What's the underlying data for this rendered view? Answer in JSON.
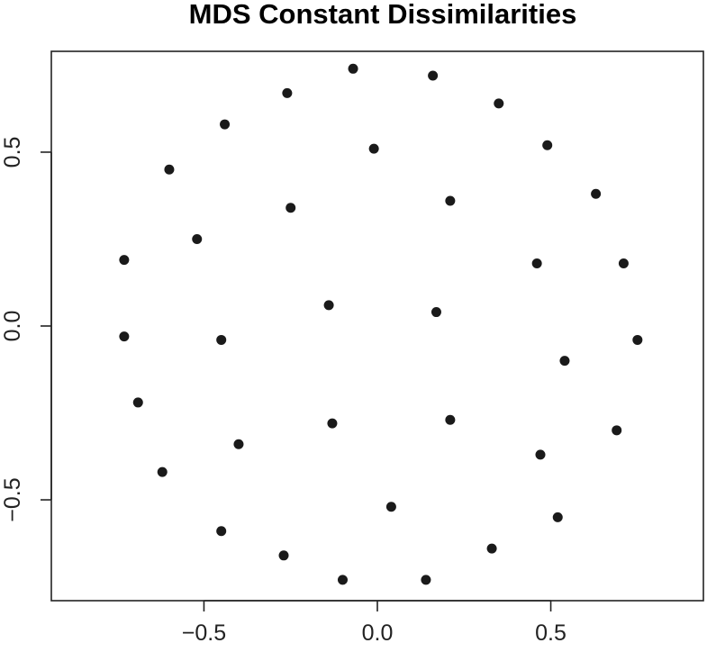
{
  "chart_data": {
    "type": "scatter",
    "title": "MDS Constant Dissimilarities",
    "xlabel": "",
    "ylabel": "",
    "xlim": [
      -0.94,
      0.94
    ],
    "ylim": [
      -0.79,
      0.79
    ],
    "x_ticks": [
      -0.5,
      0.0,
      0.5
    ],
    "x_tick_labels": [
      "−0.5",
      "0.0",
      "0.5"
    ],
    "y_ticks": [
      -0.5,
      0.0,
      0.5
    ],
    "y_tick_labels": [
      "−0.5",
      "0.0",
      "0.5"
    ],
    "grid": false,
    "legend": "none",
    "point_color": "#1a1a1a",
    "points": [
      {
        "x": -0.07,
        "y": 0.74
      },
      {
        "x": 0.16,
        "y": 0.72
      },
      {
        "x": -0.26,
        "y": 0.67
      },
      {
        "x": 0.35,
        "y": 0.64
      },
      {
        "x": -0.44,
        "y": 0.58
      },
      {
        "x": -0.01,
        "y": 0.51
      },
      {
        "x": 0.49,
        "y": 0.52
      },
      {
        "x": -0.6,
        "y": 0.45
      },
      {
        "x": 0.63,
        "y": 0.38
      },
      {
        "x": 0.21,
        "y": 0.36
      },
      {
        "x": -0.25,
        "y": 0.34
      },
      {
        "x": -0.52,
        "y": 0.25
      },
      {
        "x": -0.73,
        "y": 0.19
      },
      {
        "x": 0.46,
        "y": 0.18
      },
      {
        "x": 0.71,
        "y": 0.18
      },
      {
        "x": -0.14,
        "y": 0.06
      },
      {
        "x": 0.17,
        "y": 0.04
      },
      {
        "x": -0.73,
        "y": -0.03
      },
      {
        "x": -0.45,
        "y": -0.04
      },
      {
        "x": 0.75,
        "y": -0.04
      },
      {
        "x": 0.54,
        "y": -0.1
      },
      {
        "x": -0.69,
        "y": -0.22
      },
      {
        "x": -0.13,
        "y": -0.28
      },
      {
        "x": 0.21,
        "y": -0.27
      },
      {
        "x": 0.69,
        "y": -0.3
      },
      {
        "x": -0.4,
        "y": -0.34
      },
      {
        "x": 0.47,
        "y": -0.37
      },
      {
        "x": -0.62,
        "y": -0.42
      },
      {
        "x": 0.04,
        "y": -0.52
      },
      {
        "x": 0.52,
        "y": -0.55
      },
      {
        "x": -0.45,
        "y": -0.59
      },
      {
        "x": 0.33,
        "y": -0.64
      },
      {
        "x": -0.27,
        "y": -0.66
      },
      {
        "x": -0.1,
        "y": -0.73
      },
      {
        "x": 0.14,
        "y": -0.73
      }
    ]
  }
}
